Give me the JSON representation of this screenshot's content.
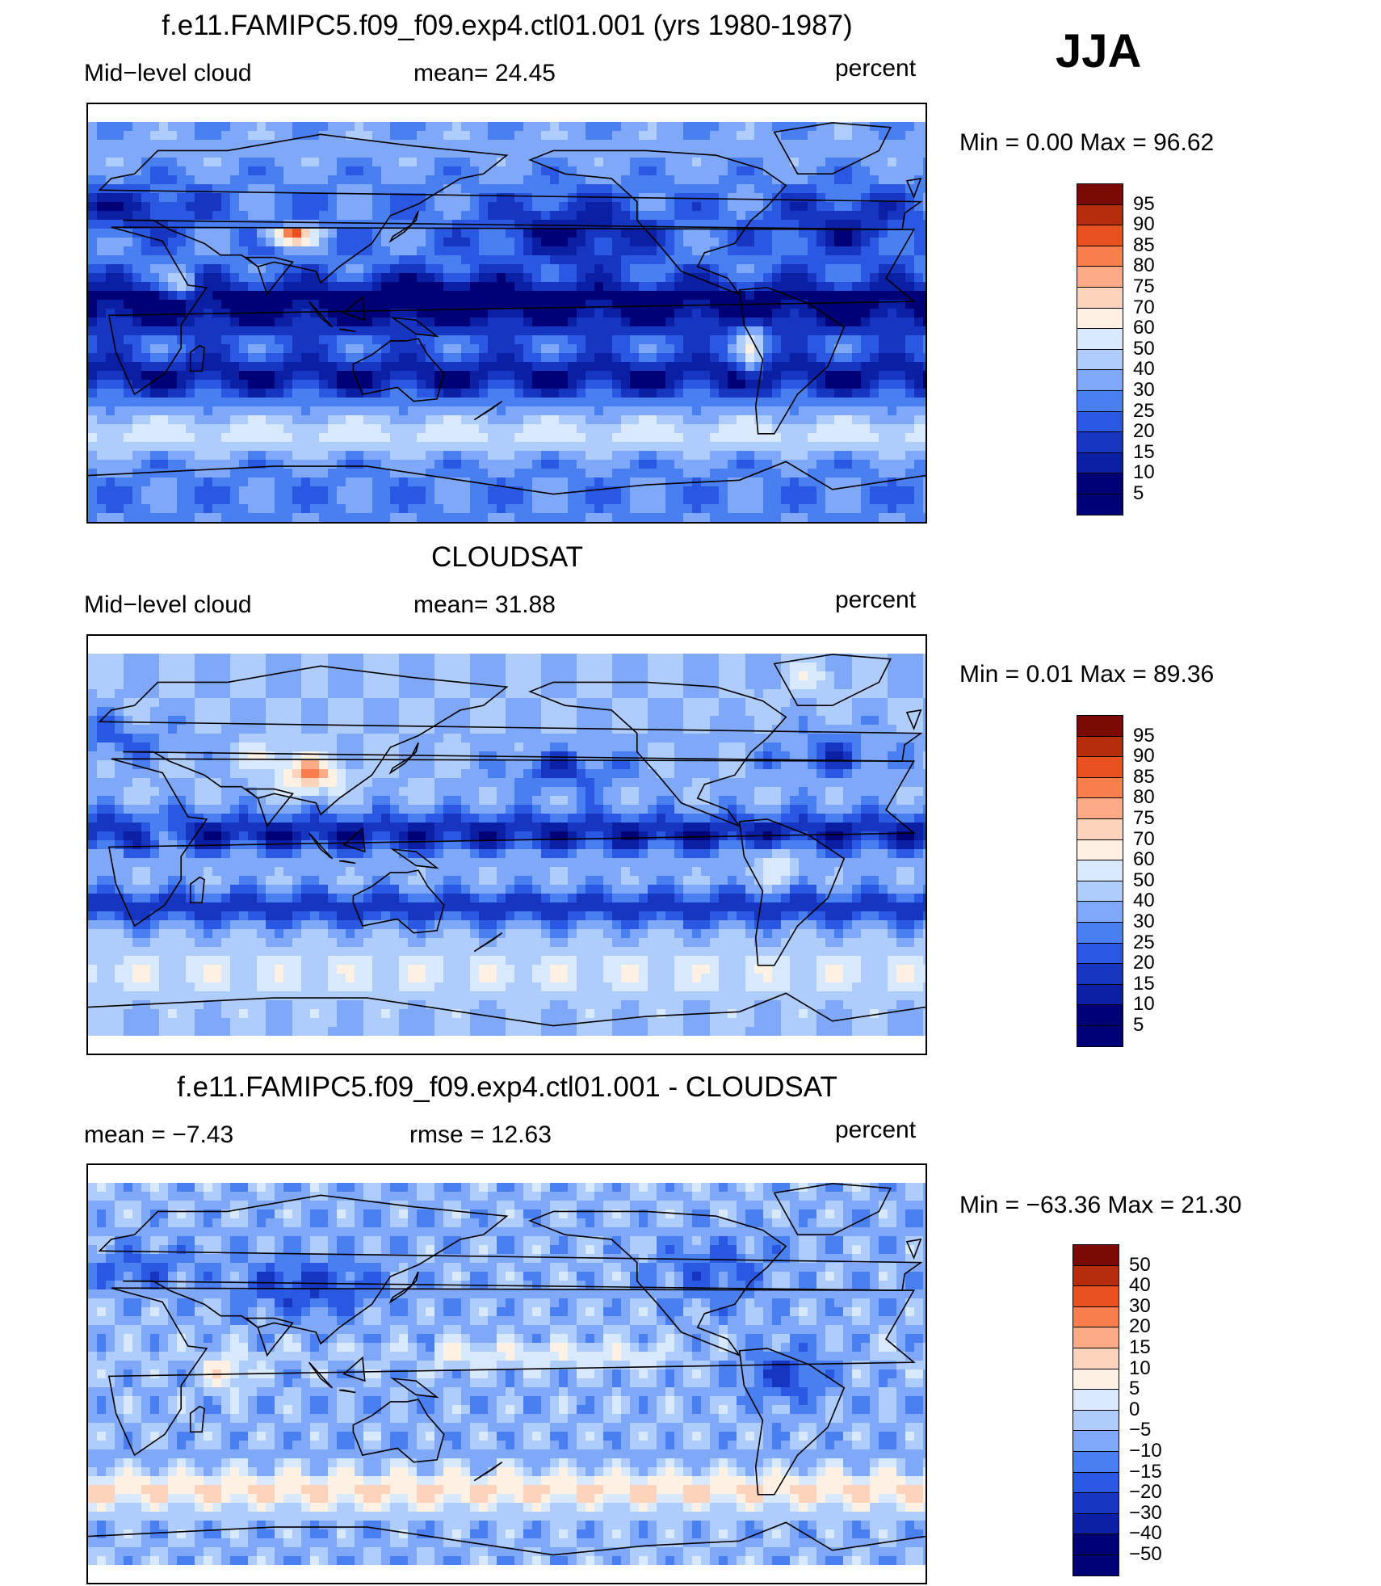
{
  "season": "JJA",
  "panels": [
    {
      "title": "f.e11.FAMIPC5.f09_f09.exp4.ctl01.001 (yrs 1980-1987)",
      "left_label": "Mid−level cloud",
      "mid_label": "mean=   24.45",
      "units": "percent",
      "minmax": "Min =     0.00  Max =    96.62",
      "colorbar": [
        "95",
        "90",
        "85",
        "80",
        "75",
        "70",
        "60",
        "50",
        "40",
        "30",
        "25",
        "20",
        "15",
        "10",
        "5"
      ]
    },
    {
      "title": "CLOUDSAT",
      "left_label": "Mid−level cloud",
      "mid_label": "mean=   31.88",
      "units": "percent",
      "minmax": "Min =     0.01  Max =    89.36",
      "colorbar": [
        "95",
        "90",
        "85",
        "80",
        "75",
        "70",
        "60",
        "50",
        "40",
        "30",
        "25",
        "20",
        "15",
        "10",
        "5"
      ]
    },
    {
      "title": "f.e11.FAMIPC5.f09_f09.exp4.ctl01.001 - CLOUDSAT",
      "left_label": "mean  =    −7.43",
      "mid_label": "rmse  =    12.63",
      "units": "percent",
      "minmax": "Min  = −63.36  Max  =    21.30",
      "colorbar": [
        "50",
        "40",
        "30",
        "20",
        "15",
        "10",
        "5",
        "0",
        "−5",
        "−10",
        "−15",
        "−20",
        "−30",
        "−40",
        "−50"
      ]
    }
  ],
  "chart_data": {
    "type": "heatmap",
    "colors_abs": [
      "#000077",
      "#0a1fa3",
      "#1636c2",
      "#2a58e3",
      "#4a7ff2",
      "#7fa9f8",
      "#aecdfc",
      "#d8e9fe",
      "#fff0e4",
      "#fdd3bc",
      "#fcab86",
      "#f97e4e",
      "#e8501f",
      "#b52d0c",
      "#7a0b04"
    ],
    "colors_diff": [
      "#000077",
      "#0a1fa3",
      "#1636c2",
      "#2a58e3",
      "#4a7ff2",
      "#7fa9f8",
      "#aecdfc",
      "#d8e9fe",
      "#fff0e4",
      "#fdd3bc",
      "#fcab86",
      "#f97e4e",
      "#e8501f",
      "#b52d0c",
      "#7a0b04"
    ]
  }
}
